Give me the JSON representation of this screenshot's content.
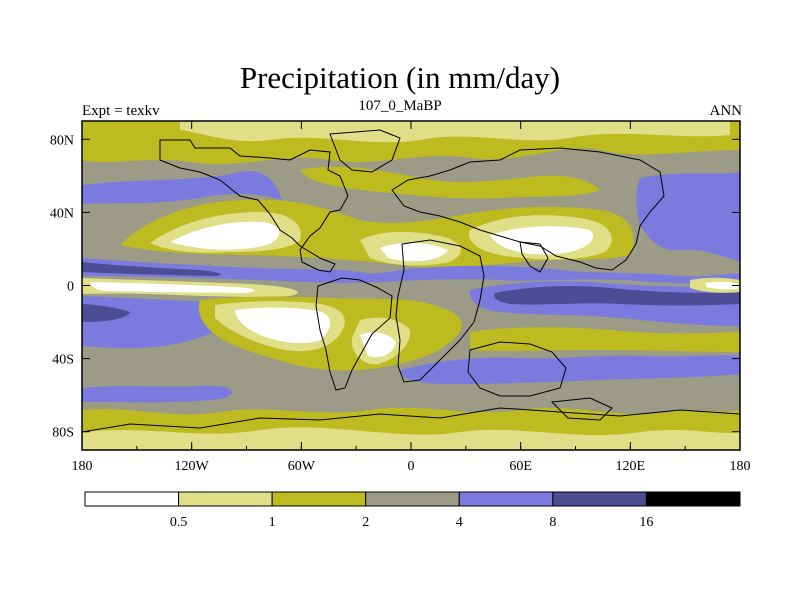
{
  "title": "Precipitation (in mm/day)",
  "left_label": "Expt = texkv",
  "center_label": "107_0_MaBP",
  "right_label": "ANN",
  "chart_data": {
    "type": "filled-contour map",
    "variable": "Precipitation",
    "units": "mm/day",
    "lon_ticks": [
      "180",
      "120W",
      "60W",
      "0",
      "60E",
      "120E",
      "180"
    ],
    "lat_ticks": [
      "80N",
      "40N",
      "0",
      "40S",
      "80S"
    ],
    "lon_range": [
      -180,
      180
    ],
    "lat_range": [
      -90,
      90
    ],
    "colorbar": {
      "levels": [
        "0.5",
        "1",
        "2",
        "4",
        "8",
        "16"
      ],
      "colors": [
        "#ffffff",
        "#e0de86",
        "#bdbb1f",
        "#9b9b87",
        "#7b7bdf",
        "#4d4d95",
        "#000000"
      ]
    }
  }
}
